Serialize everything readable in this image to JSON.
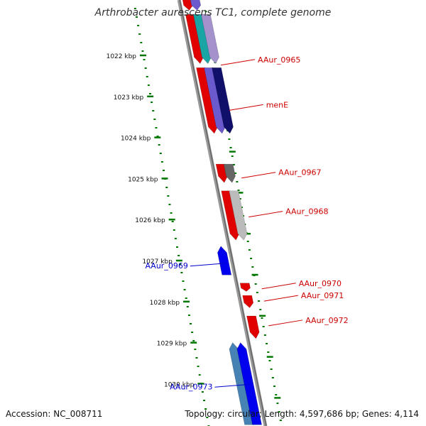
{
  "title": "Arthrobacter aurescens TC1, complete genome",
  "footer": {
    "accession": "Accession: NC_008711",
    "topology": "Topology: circular; Length: 4,597,686 bp; Genes: 4,114"
  },
  "colors": {
    "forward_label": "#cc0000",
    "reverse_label": "#0000cc",
    "tick": "#007700",
    "backbone": "#888888"
  },
  "ticks": [
    {
      "kbp": 1022,
      "label": "1022 kbp"
    },
    {
      "kbp": 1023,
      "label": "1023 kbp"
    },
    {
      "kbp": 1024,
      "label": "1024 kbp"
    },
    {
      "kbp": 1025,
      "label": "1025 kbp"
    },
    {
      "kbp": 1026,
      "label": "1026 kbp"
    },
    {
      "kbp": 1027,
      "label": "1027 kbp"
    },
    {
      "kbp": 1028,
      "label": "1028 kbp"
    },
    {
      "kbp": 1029,
      "label": "1029 kbp"
    },
    {
      "kbp": 1030,
      "label": "1030 kbp"
    }
  ],
  "gene_labels": [
    {
      "text": "AAur_0965",
      "strand": "forward",
      "kbp": 1022.1
    },
    {
      "text": "menE",
      "strand": "forward",
      "kbp": 1023.2
    },
    {
      "text": "AAur_0967",
      "strand": "forward",
      "kbp": 1024.85
    },
    {
      "text": "AAur_0968",
      "strand": "forward",
      "kbp": 1025.8
    },
    {
      "text": "AAur_0969",
      "strand": "reverse",
      "kbp": 1027.1
    },
    {
      "text": "AAur_0970",
      "strand": "forward",
      "kbp": 1027.55
    },
    {
      "text": "AAur_0971",
      "strand": "forward",
      "kbp": 1027.85
    },
    {
      "text": "AAur_0972",
      "strand": "forward",
      "kbp": 1028.45
    },
    {
      "text": "AAur_0973",
      "strand": "reverse",
      "kbp": 1030.05
    }
  ],
  "features": [
    {
      "name": "red-cds",
      "strand": "forward",
      "start": 1020.6,
      "end": 1020.9,
      "color": "#e00000",
      "ring": 0
    },
    {
      "name": "purple-cds",
      "strand": "forward",
      "start": 1020.6,
      "end": 1020.9,
      "color": "#6a5acd",
      "ring": 1
    },
    {
      "name": "red-cds",
      "strand": "forward",
      "start": 1021.0,
      "end": 1022.2,
      "color": "#e00000",
      "ring": 0
    },
    {
      "name": "teal-cds",
      "strand": "forward",
      "start": 1021.0,
      "end": 1022.2,
      "color": "#1aa5a5",
      "ring": 1
    },
    {
      "name": "lavender-cds",
      "strand": "forward",
      "start": 1021.0,
      "end": 1022.2,
      "color": "#a392cc",
      "ring": 2
    },
    {
      "name": "red-cds",
      "strand": "forward",
      "start": 1022.3,
      "end": 1023.9,
      "color": "#e00000",
      "ring": 0
    },
    {
      "name": "purple-cds",
      "strand": "forward",
      "start": 1022.3,
      "end": 1023.9,
      "color": "#6a5acd",
      "ring": 1
    },
    {
      "name": "navy-cds",
      "strand": "forward",
      "start": 1022.3,
      "end": 1023.9,
      "color": "#10106a",
      "ring": 2
    },
    {
      "name": "red-cds",
      "strand": "forward",
      "start": 1024.65,
      "end": 1025.1,
      "color": "#e00000",
      "ring": 0
    },
    {
      "name": "gray-cds",
      "strand": "forward",
      "start": 1024.65,
      "end": 1025.1,
      "color": "#666666",
      "ring": 1
    },
    {
      "name": "red-cds",
      "strand": "forward",
      "start": 1025.3,
      "end": 1026.5,
      "color": "#e00000",
      "ring": 0
    },
    {
      "name": "lightgray-cds",
      "strand": "forward",
      "start": 1025.3,
      "end": 1026.5,
      "color": "#bbbbbb",
      "ring": 1
    },
    {
      "name": "blue-cds",
      "strand": "reverse",
      "start": 1026.65,
      "end": 1027.35,
      "color": "#0000ee",
      "ring": 0
    },
    {
      "name": "red-cds",
      "strand": "forward",
      "start": 1027.55,
      "end": 1027.75,
      "color": "#e00000",
      "ring": 0
    },
    {
      "name": "red-cds",
      "strand": "forward",
      "start": 1027.85,
      "end": 1028.15,
      "color": "#e00000",
      "ring": 0
    },
    {
      "name": "red-cds",
      "strand": "forward",
      "start": 1028.35,
      "end": 1028.9,
      "color": "#e00000",
      "ring": 0
    },
    {
      "name": "steelblue-cds",
      "strand": "reverse",
      "start": 1029.0,
      "end": 1031.0,
      "color": "#4682b4",
      "ring": 1
    },
    {
      "name": "blue-cds",
      "strand": "reverse",
      "start": 1029.0,
      "end": 1031.0,
      "color": "#0000ee",
      "ring": 0
    }
  ]
}
